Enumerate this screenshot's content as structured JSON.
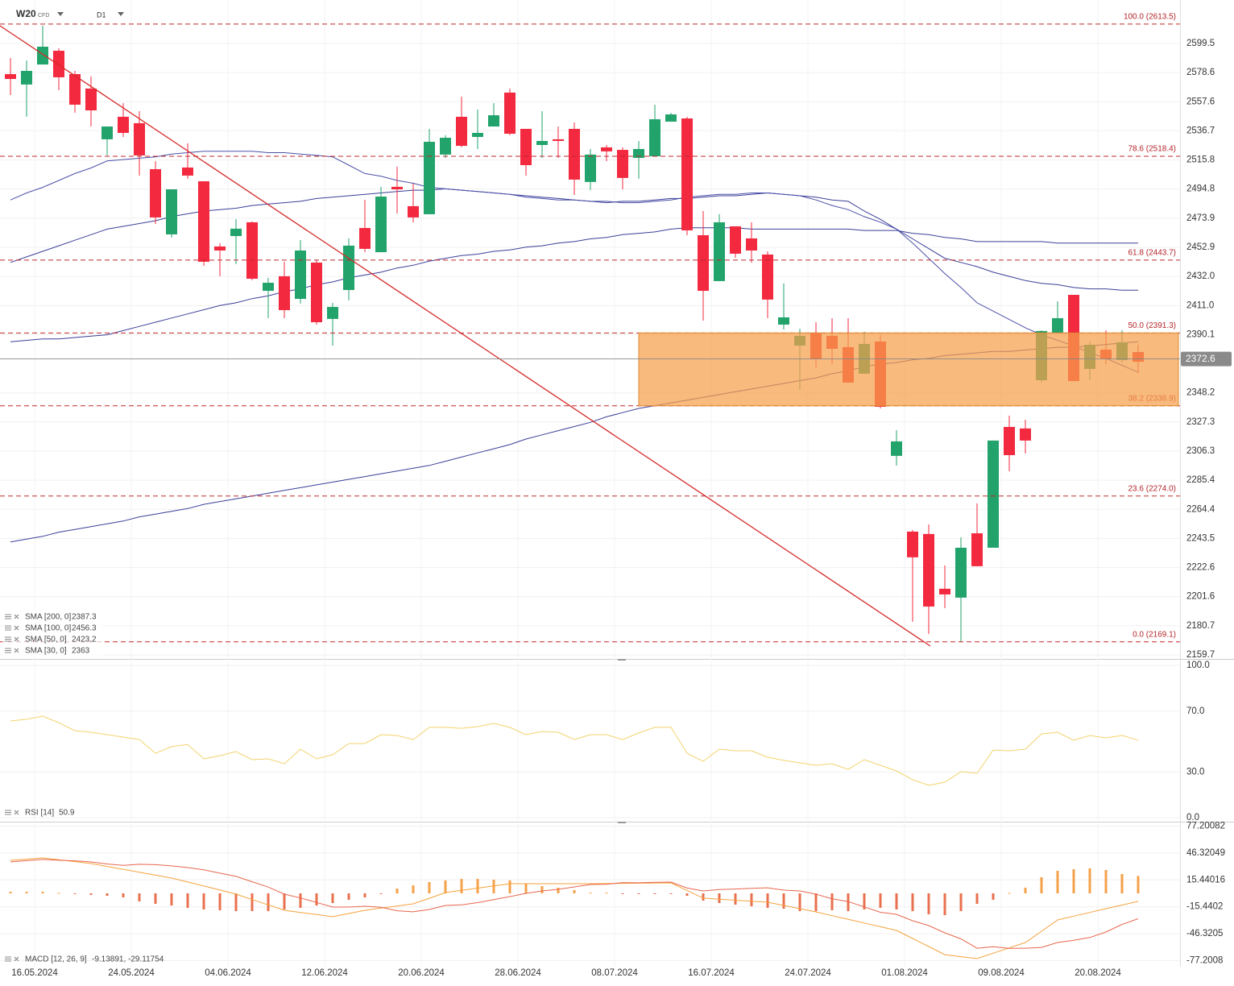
{
  "header": {
    "symbol": "W20",
    "instrument": "CFD",
    "timeframe": "D1"
  },
  "chart_data": [
    {
      "type": "candlestick",
      "categories": [
        "16.05.2024",
        null,
        null,
        null,
        null,
        null,
        "24.05.2024",
        null,
        null,
        null,
        null,
        null,
        "04.06.2024",
        null,
        null,
        null,
        null,
        null,
        "12.06.2024",
        null,
        null,
        null,
        null,
        null,
        "20.06.2024",
        null,
        null,
        null,
        null,
        null,
        "28.06.2024",
        null,
        null,
        null,
        null,
        null,
        "08.07.2024",
        null,
        null,
        null,
        null,
        null,
        "16.07.2024",
        null,
        null,
        null,
        null,
        null,
        "24.07.2024",
        null,
        null,
        null,
        null,
        null,
        "01.08.2024",
        null,
        null,
        null,
        null,
        null,
        "09.08.2024",
        null,
        null,
        null,
        null,
        null,
        "20.08.2024",
        null,
        null,
        null,
        null
      ],
      "open": [
        2577.5,
        2570.0,
        2584.4,
        2594.3,
        2577.5,
        2567.1,
        2530.6,
        2546.8,
        2542.2,
        2509.1,
        2462.2,
        2510.3,
        2500.4,
        2453.5,
        2461.0,
        2470.9,
        2421.6,
        2432.1,
        2415.8,
        2441.9,
        2401.4,
        2422.2,
        2466.8,
        2449.4,
        2496.4,
        2482.5,
        2476.7,
        2519.6,
        2546.8,
        2532.3,
        2539.8,
        2564.2,
        2538.1,
        2526.5,
        2530.6,
        2538.1,
        2499.9,
        2524.8,
        2523.0,
        2517.2,
        2518.4,
        2543.3,
        2545.6,
        2461.6,
        2428.6,
        2468.0,
        2459.3,
        2447.7,
        2397.3,
        2382.2,
        2391.5,
        2389.2,
        2381.1,
        2362.0,
        2385.1,
        2302.9,
        2248.4,
        2246.7,
        2207.3,
        2200.9,
        2247.2,
        2236.8,
        2323.7,
        2322.6,
        2357.3,
        2391.5,
        2418.7,
        2365.4,
        2379.3,
        2371.8,
        2377.6
      ],
      "high": [
        2589.1,
        2587.3,
        2612.3,
        2596.0,
        2579.8,
        2575.8,
        2539.8,
        2556.6,
        2550.8,
        2514.9,
        2494.6,
        2527.7,
        2500.4,
        2455.8,
        2473.2,
        2471.5,
        2430.9,
        2442.5,
        2458.1,
        2443.7,
        2412.9,
        2459.3,
        2487.1,
        2496.4,
        2510.9,
        2498.7,
        2538.1,
        2533.5,
        2561.3,
        2552.0,
        2556.6,
        2567.1,
        2538.1,
        2550.8,
        2539.8,
        2542.7,
        2523.6,
        2526.5,
        2524.8,
        2529.4,
        2555.5,
        2549.7,
        2546.8,
        2479.0,
        2476.7,
        2468.0,
        2470.9,
        2450.0,
        2426.9,
        2394.4,
        2399.0,
        2401.9,
        2401.9,
        2392.1,
        2389.8,
        2321.4,
        2249.6,
        2253.6,
        2224.1,
        2244.3,
        2268.7,
        2313.9,
        2331.8,
        2328.9,
        2393.2,
        2414.1,
        2418.7,
        2385.1,
        2393.2,
        2393.2,
        2382.8
      ],
      "low": [
        2562.4,
        2546.8,
        2584.4,
        2565.9,
        2549.7,
        2539.8,
        2519.0,
        2532.3,
        2504.5,
        2469.7,
        2459.9,
        2502.2,
        2439.6,
        2432.1,
        2440.8,
        2429.2,
        2401.9,
        2401.9,
        2412.4,
        2397.3,
        2382.2,
        2414.7,
        2449.4,
        2449.4,
        2477.3,
        2470.9,
        2476.7,
        2517.2,
        2524.8,
        2523.6,
        2539.8,
        2533.5,
        2504.5,
        2517.2,
        2517.2,
        2490.6,
        2494.1,
        2514.9,
        2494.6,
        2502.2,
        2518.4,
        2543.3,
        2461.6,
        2400.2,
        2428.6,
        2445.4,
        2441.9,
        2401.9,
        2393.8,
        2350.4,
        2366.6,
        2368.9,
        2355.6,
        2362.0,
        2337.0,
        2295.9,
        2183.5,
        2174.8,
        2193.4,
        2169.1,
        2223.5,
        2236.8,
        2291.8,
        2304.6,
        2355.6,
        2391.5,
        2356.7,
        2357.3,
        2368.9,
        2370.1,
        2362.5
      ],
      "close": [
        2574.0,
        2579.8,
        2597.2,
        2575.2,
        2555.5,
        2551.4,
        2539.8,
        2535.2,
        2519.0,
        2474.4,
        2494.6,
        2504.5,
        2442.5,
        2450.6,
        2466.3,
        2430.3,
        2427.4,
        2407.7,
        2450.6,
        2399.0,
        2410.0,
        2454.1,
        2451.8,
        2489.4,
        2494.6,
        2474.4,
        2528.8,
        2531.7,
        2525.9,
        2535.2,
        2547.9,
        2534.6,
        2512.0,
        2529.4,
        2529.4,
        2501.6,
        2519.6,
        2521.9,
        2502.8,
        2523.6,
        2545.0,
        2548.5,
        2465.1,
        2421.6,
        2470.9,
        2448.3,
        2450.6,
        2415.3,
        2402.5,
        2389.2,
        2372.4,
        2379.9,
        2355.6,
        2383.4,
        2338.2,
        2313.3,
        2229.9,
        2194.5,
        2203.2,
        2236.8,
        2223.5,
        2313.9,
        2303.4,
        2313.9,
        2392.7,
        2401.9,
        2356.7,
        2382.8,
        2372.4,
        2384.6,
        2370.6
      ],
      "up_color": "#22a36b",
      "down_color": "#f3293f",
      "series": [
        {
          "name": "SMA [200, 0]",
          "last": 2387.3,
          "color": "#3b3f98",
          "values": [
            2241,
            2243,
            2245,
            2248,
            2250,
            2252,
            2254,
            2256,
            2259,
            2261,
            2263,
            2265,
            2268,
            2270,
            2272,
            2274,
            2276,
            2278,
            2280,
            2282,
            2284,
            2286,
            2288,
            2290,
            2292,
            2294,
            2296,
            2299,
            2302,
            2305,
            2308,
            2311,
            2315,
            2318,
            2321,
            2324,
            2327,
            2331,
            2334,
            2337,
            2339,
            2341,
            2343,
            2345,
            2347,
            2349,
            2351,
            2353,
            2355,
            2357,
            2359,
            2362,
            2364,
            2367,
            2369,
            2370,
            2372,
            2373,
            2375,
            2376,
            2377,
            2378,
            2378,
            2379,
            2380,
            2381,
            2381,
            2382,
            2383,
            2384,
            2385
          ]
        },
        {
          "name": "SMA [100, 0]",
          "last": 2456.3,
          "color": "#3b3f98",
          "values": [
            2385,
            2386,
            2387,
            2387,
            2388,
            2389,
            2390,
            2393,
            2396,
            2399,
            2402,
            2405,
            2408,
            2411,
            2413,
            2416,
            2418,
            2421,
            2423,
            2426,
            2428,
            2431,
            2433,
            2435,
            2438,
            2440,
            2443,
            2445,
            2447,
            2448,
            2450,
            2451,
            2453,
            2454,
            2456,
            2457,
            2459,
            2460,
            2462,
            2463,
            2464,
            2466,
            2467,
            2467,
            2467,
            2467,
            2466,
            2466,
            2466,
            2466,
            2466,
            2466,
            2466,
            2465,
            2465,
            2465,
            2463,
            2462,
            2460,
            2459,
            2457,
            2457,
            2457,
            2457,
            2457,
            2456,
            2456,
            2456,
            2456,
            2456,
            2456
          ]
        },
        {
          "name": "SMA [50, 0]",
          "last": 2423.2,
          "color": "#3b3f98",
          "values": [
            2442,
            2446,
            2450,
            2454,
            2458,
            2462,
            2466,
            2468,
            2470,
            2472,
            2475,
            2477,
            2479,
            2480,
            2481,
            2483,
            2484,
            2485,
            2486,
            2488,
            2489,
            2490,
            2491,
            2492,
            2493,
            2494,
            2494,
            2495,
            2494,
            2493,
            2492,
            2491,
            2490,
            2489,
            2488,
            2487,
            2486,
            2485,
            2486,
            2486,
            2487,
            2488,
            2488,
            2489,
            2490,
            2490,
            2491,
            2492,
            2491,
            2490,
            2489,
            2487,
            2486,
            2479,
            2473,
            2466,
            2459,
            2452,
            2445,
            2442,
            2439,
            2435,
            2432,
            2429,
            2427,
            2426,
            2424,
            2423,
            2423,
            2422,
            2422
          ]
        },
        {
          "name": "SMA [30, 0]",
          "last": 2363.0,
          "color": "#4b50a8",
          "values": [
            2487,
            2492,
            2496,
            2501,
            2506,
            2510,
            2515,
            2516,
            2517,
            2518,
            2520,
            2521,
            2522,
            2522,
            2522,
            2522,
            2521,
            2521,
            2520,
            2519,
            2518,
            2512,
            2506,
            2504,
            2501,
            2499,
            2496,
            2495,
            2494,
            2493,
            2492,
            2491,
            2489,
            2488,
            2487,
            2487,
            2486,
            2486,
            2485,
            2485,
            2486,
            2487,
            2489,
            2490,
            2491,
            2491,
            2492,
            2492,
            2491,
            2490,
            2487,
            2483,
            2480,
            2475,
            2471,
            2466,
            2456,
            2445,
            2434,
            2424,
            2413,
            2407,
            2401,
            2395,
            2390,
            2386,
            2382,
            2377,
            2373,
            2368,
            2363
          ]
        }
      ],
      "fib_levels": [
        {
          "label": "100.0 (2613.5)",
          "value": 2613.5
        },
        {
          "label": "78.6 (2518.4)",
          "value": 2518.4
        },
        {
          "label": "61.8 (2443.7)",
          "value": 2443.7
        },
        {
          "label": "50.0 (2391.3)",
          "value": 2391.3
        },
        {
          "label": "38.2 (2338.9)",
          "value": 2338.9
        },
        {
          "label": "23.6 (2274.0)",
          "value": 2274.0
        },
        {
          "label": "0.0 (2169.1)",
          "value": 2169.1
        }
      ],
      "fib_color": "#c0282d",
      "zone_color": "#f7a04b",
      "current_price": 2372.6,
      "ylim": [
        2156.8,
        2630.8
      ],
      "yticks": [
        2599.5,
        2578.6,
        2557.6,
        2536.7,
        2515.8,
        2494.8,
        2473.9,
        2452.9,
        {
          "value": 2432,
          "label": "2432.0"
        },
        {
          "value": 2411,
          "label": "2411.0"
        },
        2390.1,
        2348.2,
        2327.3,
        2306.3,
        2285.4,
        2264.4,
        2243.5,
        2222.6,
        2201.6,
        2180.7,
        2159.7
      ]
    },
    {
      "type": "line",
      "series": [
        {
          "name": "RSI [14]",
          "color": "#f2d36c",
          "values": [
            63.5,
            64.6,
            66.7,
            62.4,
            57.1,
            56.1,
            54.5,
            52.9,
            51.3,
            42.3,
            46.6,
            48.1,
            38.6,
            40.7,
            43.4,
            38.1,
            38.6,
            35.4,
            45.0,
            38.6,
            41.3,
            48.7,
            48.7,
            54.5,
            54.0,
            51.3,
            59.3,
            59.3,
            58.7,
            59.8,
            61.9,
            59.3,
            54.5,
            56.6,
            56.1,
            51.3,
            54.5,
            54.5,
            51.3,
            55.6,
            59.3,
            59.3,
            42.3,
            37.0,
            45.0,
            43.9,
            43.9,
            39.7,
            37.6,
            36.0,
            34.4,
            35.4,
            31.7,
            38.1,
            34.4,
            30.7,
            24.9,
            21.2,
            23.3,
            30.2,
            29.1,
            44.4,
            43.9,
            45.0,
            55.0,
            56.1,
            50.8,
            54.0,
            52.4,
            54.0,
            50.9
          ]
        }
      ],
      "ylim": [
        -1.6,
        103.2
      ],
      "yticks": [
        {
          "value": 100,
          "label": "100.0"
        },
        {
          "value": 70,
          "label": "70.0"
        },
        {
          "value": 30,
          "label": "30.0"
        },
        {
          "value": 0,
          "label": "0.0"
        }
      ]
    },
    {
      "type": "macd",
      "legend": {
        "name": "MACD [12, 26, 9]",
        "values_label": "-9.13891, -29.11754"
      },
      "histogram": {
        "up_color": "#f4a14a",
        "down_color": "#e9704f",
        "values": [
          1.8,
          1.8,
          1.8,
          0.5,
          -0.9,
          -1.8,
          -2.8,
          -4.6,
          -9.2,
          -12.0,
          -13.9,
          -16.6,
          -18.5,
          -19.4,
          -20.4,
          -20.4,
          -20.4,
          -18.5,
          -16.6,
          -13.9,
          -11.1,
          -7.4,
          -4.6,
          -0.9,
          5.5,
          9.2,
          12.9,
          14.8,
          16.6,
          16.6,
          15.7,
          14.8,
          11.1,
          8.3,
          6.5,
          3.7,
          0.9,
          0.9,
          -0.9,
          -0.5,
          -0.9,
          -0.9,
          -2.8,
          -8.3,
          -11.1,
          -12.9,
          -14.8,
          -16.6,
          -17.6,
          -20.4,
          -20.4,
          -19.4,
          -20.4,
          -18.5,
          -16.6,
          -18.5,
          -20.4,
          -24.0,
          -25.0,
          -20.4,
          -12.0,
          -7.4,
          0.5,
          6.5,
          18.5,
          25.9,
          27.7,
          28.7,
          26.8,
          22.2,
          19.98
        ]
      },
      "series": [
        {
          "color": "#f5a23d",
          "values": [
            37.9,
            39.3,
            40.7,
            38.5,
            36.4,
            34.2,
            30.9,
            27.6,
            24.2,
            20.9,
            17.6,
            13.0,
            8.5,
            3.8,
            -0.9,
            -7.1,
            -13.2,
            -19.4,
            -21.9,
            -24.3,
            -26.8,
            -23.1,
            -19.4,
            -16.9,
            -14.5,
            -12.0,
            -5.6,
            0.9,
            3.5,
            6.0,
            8.6,
            11.1,
            11.1,
            11.1,
            11.1,
            11.1,
            11.1,
            11.3,
            11.5,
            11.6,
            11.8,
            12.0,
            3.3,
            -5.5,
            -6.7,
            -7.9,
            -9.0,
            -10.2,
            -13.9,
            -17.6,
            -21.3,
            -25.6,
            -29.8,
            -34.0,
            -38.3,
            -42.5,
            -51.8,
            -61.0,
            -70.3,
            -72.6,
            -74.9,
            -68.7,
            -62.6,
            -56.4,
            -43.5,
            -30.5,
            -26.2,
            -21.9,
            -17.6,
            -13.4,
            -9.13891
          ]
        },
        {
          "color": "#e8664d",
          "values": [
            36.1,
            37.5,
            38.9,
            38.0,
            37.3,
            36.0,
            33.7,
            32.2,
            33.4,
            32.9,
            31.5,
            29.6,
            27.0,
            23.2,
            19.5,
            13.3,
            7.2,
            -0.9,
            -5.3,
            -10.4,
            -15.7,
            -15.7,
            -14.8,
            -16.0,
            -20.0,
            -21.2,
            -18.5,
            -13.9,
            -13.1,
            -10.6,
            -7.1,
            -3.7,
            0.0,
            2.8,
            4.6,
            7.4,
            10.2,
            10.4,
            12.4,
            12.1,
            12.7,
            12.9,
            6.1,
            2.8,
            4.4,
            5.0,
            5.8,
            6.4,
            3.7,
            2.8,
            -0.9,
            -6.2,
            -9.4,
            -15.5,
            -21.7,
            -24.0,
            -31.4,
            -37.0,
            -45.3,
            -52.2,
            -62.9,
            -61.3,
            -63.1,
            -62.9,
            -62.0,
            -56.4,
            -53.9,
            -50.6,
            -44.4,
            -35.6,
            -29.11754
          ]
        }
      ],
      "ylim": [
        -84.1,
        80.4
      ],
      "yticks": [
        77.20082,
        46.32049,
        15.44016,
        -15.4402,
        -46.3205,
        -77.2008
      ]
    }
  ]
}
